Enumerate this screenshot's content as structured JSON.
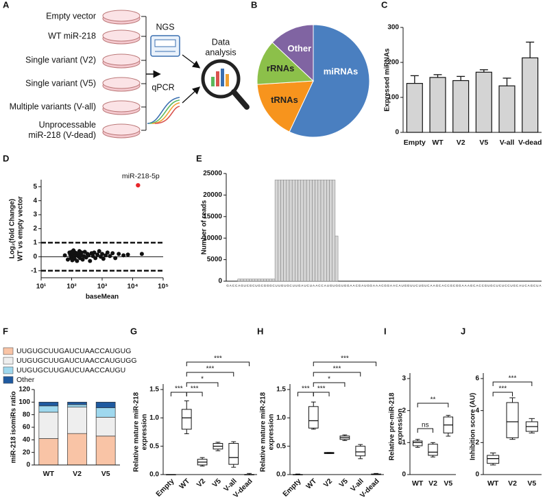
{
  "figure": {
    "panel_labels": [
      "A",
      "B",
      "C",
      "D",
      "E",
      "F",
      "G",
      "H",
      "I",
      "J"
    ]
  },
  "diagram": {
    "samples": [
      [
        "Empty vector"
      ],
      [
        "WT miR-218"
      ],
      [
        "Single variant (V2)"
      ],
      [
        "Single variant (V5)"
      ],
      [
        "Multiple variants (V-all)"
      ],
      [
        "Unprocessable",
        "miR-218 (V-dead)"
      ]
    ],
    "methods": [
      "NGS",
      "qPCR"
    ],
    "analysis": [
      "Data",
      "analysis"
    ]
  },
  "chart_data": [
    {
      "type": "pie",
      "categories": [
        "miRNAs",
        "tRNAs",
        "rRNAs",
        "Other"
      ],
      "values": [
        57,
        17,
        13,
        13
      ],
      "colors": [
        "#4a7fc0",
        "#f7941d",
        "#8cc04a",
        "#8064a2"
      ]
    },
    {
      "type": "bar",
      "ylabel": "Expressed miRNAs",
      "categories": [
        "Empty",
        "WT",
        "V2",
        "V5",
        "V-all",
        "V-dead"
      ],
      "values": [
        140,
        157,
        148,
        172,
        133,
        213
      ],
      "errors": [
        22,
        8,
        12,
        7,
        22,
        45
      ],
      "color": "#d4d4d4",
      "ylim": [
        0,
        300
      ],
      "yticks": [
        0,
        100,
        200,
        300
      ]
    },
    {
      "type": "scatter",
      "xlabel": "baseMean",
      "ylabel": [
        "Log₂(fold Change)",
        "WT vs empty vector"
      ],
      "xscale": "log",
      "xlim": [
        10,
        100000
      ],
      "xticks": [
        {
          "value": 10,
          "label": "10¹"
        },
        {
          "value": 100,
          "label": "10²"
        },
        {
          "value": 1000,
          "label": "10³"
        },
        {
          "value": 10000,
          "label": "10⁴"
        },
        {
          "value": 100000,
          "label": "10⁵"
        }
      ],
      "ylim": [
        -1.5,
        5.5
      ],
      "yticks": [
        -1,
        0,
        1,
        2,
        3,
        4,
        5
      ],
      "reference_lines": [
        -1,
        0,
        1
      ],
      "color": "#111111",
      "x": [
        60,
        75,
        85,
        90,
        95,
        100,
        100,
        105,
        110,
        115,
        120,
        125,
        130,
        140,
        150,
        160,
        170,
        180,
        190,
        200,
        210,
        230,
        250,
        270,
        300,
        330,
        360,
        400,
        450,
        500,
        550,
        600,
        700,
        800,
        900,
        1000,
        1100,
        1300,
        1500,
        1800,
        2200,
        2700,
        3500,
        5000,
        7000,
        20000
      ],
      "y": [
        0.1,
        -0.2,
        0.3,
        0.15,
        -0.1,
        0.35,
        0.05,
        -0.25,
        0.2,
        0.45,
        0.0,
        -0.15,
        0.3,
        0.1,
        -0.3,
        0.25,
        0.0,
        0.4,
        -0.1,
        0.15,
        0.3,
        -0.2,
        0.05,
        0.35,
        -0.05,
        0.2,
        0.1,
        -0.3,
        0.25,
        0.05,
        0.3,
        -0.1,
        0.15,
        0.4,
        0.0,
        0.2,
        -0.15,
        0.1,
        0.3,
        0.05,
        0.25,
        -0.1,
        0.2,
        0.1,
        0.15,
        0.2
      ],
      "highlight": {
        "label": "miR-218-5p",
        "x": 15000,
        "y": 5.1,
        "color": "#e8262b"
      }
    },
    {
      "type": "bar",
      "ylabel": "Number of reads",
      "color": "#d6d6d6",
      "ylim": [
        0,
        25000
      ],
      "yticks": [
        0,
        5000,
        10000,
        15000,
        20000,
        25000
      ],
      "categories": [
        "G",
        "A",
        "C",
        "C",
        "A",
        "G",
        "U",
        "C",
        "G",
        "C",
        "U",
        "G",
        "C",
        "G",
        "G",
        "G",
        "C",
        "U",
        "U",
        "G",
        "U",
        "G",
        "C",
        "U",
        "U",
        "G",
        "A",
        "U",
        "C",
        "U",
        "A",
        "A",
        "C",
        "C",
        "A",
        "U",
        "G",
        "U",
        "G",
        "G",
        "U",
        "G",
        "G",
        "A",
        "A",
        "C",
        "G",
        "A",
        "U",
        "G",
        "G",
        "A",
        "A",
        "A",
        "C",
        "G",
        "G",
        "A",
        "A",
        "C",
        "A",
        "U",
        "G",
        "G",
        "U",
        "U",
        "C",
        "U",
        "G",
        "U",
        "C",
        "A",
        "A",
        "G",
        "C",
        "A",
        "C",
        "C",
        "G",
        "C",
        "G",
        "G",
        "A",
        "A",
        "A",
        "G",
        "C",
        "A",
        "C",
        "C",
        "G",
        "U",
        "G",
        "C",
        "U",
        "C",
        "U",
        "C",
        "C",
        "U",
        "G",
        "C",
        "A",
        "U",
        "C",
        "A",
        "G",
        "C",
        "U",
        "A"
      ],
      "values": [
        0,
        0,
        0,
        0,
        500,
        500,
        500,
        500,
        500,
        500,
        500,
        500,
        500,
        500,
        500,
        500,
        500,
        23500,
        23500,
        23500,
        23500,
        23500,
        23500,
        23500,
        23500,
        23500,
        23500,
        23500,
        23500,
        23500,
        23500,
        23500,
        23500,
        23500,
        23500,
        23500,
        23500,
        23500,
        10500,
        0,
        0,
        0,
        0,
        0,
        0,
        0,
        0,
        0,
        0,
        0,
        0,
        0,
        0,
        0,
        0,
        0,
        0,
        0,
        0,
        0,
        0,
        0,
        0,
        0,
        0,
        0,
        0,
        0,
        0,
        0,
        0,
        0,
        0,
        0,
        0,
        0,
        0,
        0,
        0,
        0,
        0,
        0,
        0,
        0,
        0,
        0,
        0,
        0,
        0,
        0,
        0,
        0,
        0,
        0,
        0,
        0,
        0,
        0,
        0,
        0,
        0,
        0,
        0,
        0,
        0,
        0,
        0,
        0,
        0,
        0
      ]
    },
    {
      "type": "stacked_bar",
      "ylabel": "miR-218 isomiRs ratio",
      "categories": [
        "WT",
        "V2",
        "V5"
      ],
      "ylim": [
        0,
        120
      ],
      "yticks": [
        0,
        20,
        40,
        60,
        80,
        100,
        120
      ],
      "series": [
        {
          "name": "UUGUGCUUGAUCUAACCAUGUG",
          "color": "#f9c4a6",
          "values": [
            42,
            50,
            46
          ]
        },
        {
          "name": "UUGUGCUUGAUCUAACCAUGUGG",
          "color": "#eeeeee",
          "values": [
            42,
            42,
            30
          ]
        },
        {
          "name": "UUGUGCUUGAUCUAACCAUGU",
          "color": "#9fd8ee",
          "values": [
            10,
            4,
            15
          ]
        },
        {
          "name": "Other",
          "color": "#1f5aa0",
          "values": [
            6,
            4,
            9
          ]
        }
      ]
    },
    {
      "type": "box",
      "ylabel": [
        "Relative mature miR-218",
        "expression"
      ],
      "categories": [
        "Empty",
        "WT",
        "V2",
        "V5",
        "V-all",
        "V-dead"
      ],
      "ylim": [
        0,
        1.5
      ],
      "yticks": [
        {
          "value": 0,
          "label": "0.0"
        },
        {
          "value": 0.5,
          "label": "0.5"
        },
        {
          "value": 1,
          "label": "1.0"
        },
        {
          "value": 1.5,
          "label": "1.5"
        }
      ],
      "boxes": [
        {
          "min": 0,
          "q1": 0,
          "median": 0,
          "q3": 0,
          "max": 0
        },
        {
          "min": 0.72,
          "q1": 0.8,
          "median": 1.0,
          "q3": 1.15,
          "max": 1.3
        },
        {
          "min": 0.15,
          "q1": 0.17,
          "median": 0.22,
          "q3": 0.27,
          "max": 0.3
        },
        {
          "min": 0.42,
          "q1": 0.45,
          "median": 0.5,
          "q3": 0.55,
          "max": 0.57
        },
        {
          "min": 0.13,
          "q1": 0.18,
          "median": 0.3,
          "q3": 0.55,
          "max": 0.58
        },
        {
          "min": 0,
          "q1": 0,
          "median": 0,
          "q3": 0,
          "max": 0.02
        }
      ],
      "annotations": [
        "***",
        "***",
        "*",
        "***",
        "***"
      ]
    },
    {
      "type": "box",
      "ylabel": [
        "Relative mature miR-218",
        "expression"
      ],
      "categories": [
        "Empty",
        "WT",
        "V2",
        "V5",
        "V-all",
        "V-dead"
      ],
      "ylim": [
        0,
        1.5
      ],
      "yticks": [
        {
          "value": 0,
          "label": "0.0"
        },
        {
          "value": 0.5,
          "label": "0.5"
        },
        {
          "value": 1,
          "label": "1.0"
        },
        {
          "value": 1.5,
          "label": "1.5"
        }
      ],
      "boxes": [
        {
          "min": 0,
          "q1": 0,
          "median": 0,
          "q3": 0,
          "max": 0.01
        },
        {
          "min": 0.8,
          "q1": 0.82,
          "median": 0.95,
          "q3": 1.2,
          "max": 1.28
        },
        {
          "min": 0.37,
          "q1": 0.37,
          "median": 0.38,
          "q3": 0.39,
          "max": 0.39
        },
        {
          "min": 0.6,
          "q1": 0.62,
          "median": 0.65,
          "q3": 0.68,
          "max": 0.7
        },
        {
          "min": 0.28,
          "q1": 0.33,
          "median": 0.4,
          "q3": 0.5,
          "max": 0.53
        },
        {
          "min": 0,
          "q1": 0,
          "median": 0,
          "q3": 0.01,
          "max": 0.02
        }
      ],
      "annotations": [
        "***",
        "***",
        "*",
        "***",
        "***"
      ]
    },
    {
      "type": "box",
      "ylabel": [
        "Relative pre-miR-218",
        "expression"
      ],
      "categories": [
        "WT",
        "V2",
        "V5"
      ],
      "ylim": [
        0,
        3
      ],
      "yticks": [
        0,
        1,
        2,
        3
      ],
      "boxes": [
        {
          "min": 0.85,
          "q1": 0.9,
          "median": 1.0,
          "q3": 1.05,
          "max": 1.1
        },
        {
          "min": 0.55,
          "q1": 0.6,
          "median": 0.7,
          "q3": 0.95,
          "max": 1.0
        },
        {
          "min": 1.2,
          "q1": 1.3,
          "median": 1.55,
          "q3": 1.8,
          "max": 1.85
        }
      ],
      "annotations": [
        "ns",
        "**"
      ]
    },
    {
      "type": "box",
      "ylabel": [
        "Inhibition score (AU)"
      ],
      "categories": [
        "WT",
        "V2",
        "V5"
      ],
      "ylim": [
        0,
        6
      ],
      "yticks": [
        0,
        2,
        4,
        6
      ],
      "boxes": [
        {
          "min": 0.6,
          "q1": 0.7,
          "median": 1.0,
          "q3": 1.2,
          "max": 1.35
        },
        {
          "min": 2.2,
          "q1": 2.3,
          "median": 3.3,
          "q3": 4.5,
          "max": 4.8
        },
        {
          "min": 2.6,
          "q1": 2.7,
          "median": 3.0,
          "q3": 3.3,
          "max": 3.5
        }
      ],
      "annotations": [
        "***",
        "***"
      ]
    }
  ]
}
